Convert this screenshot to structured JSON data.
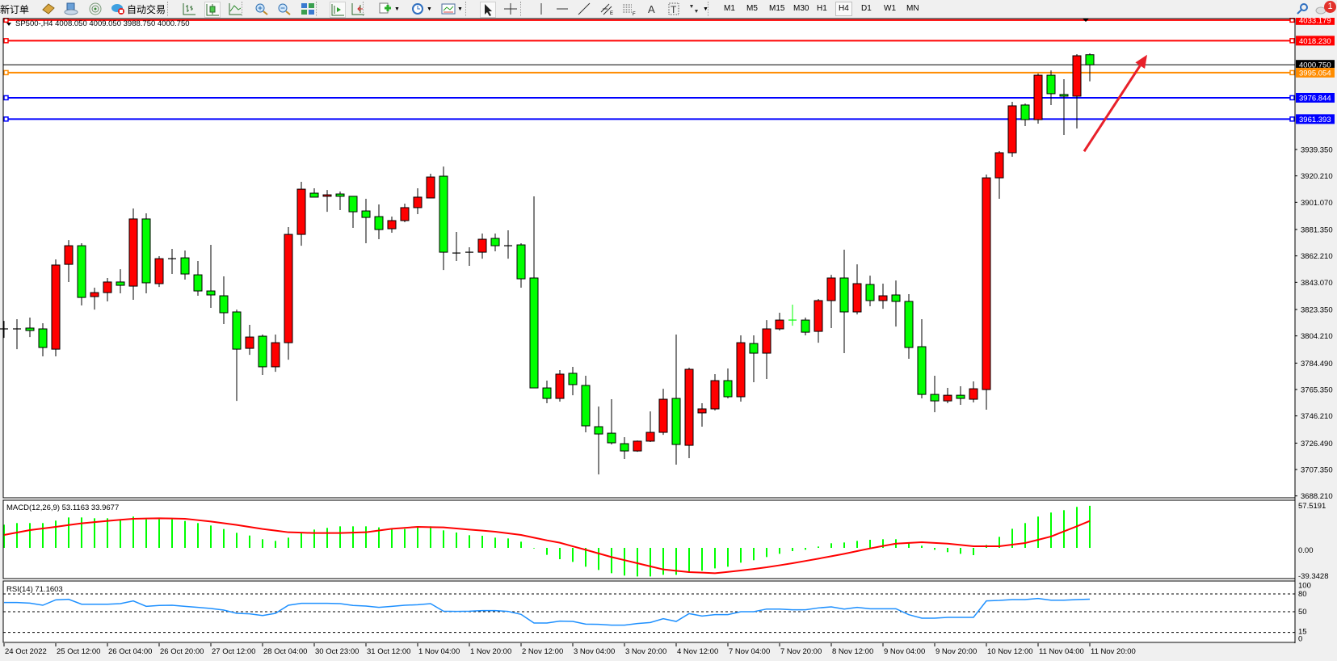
{
  "toolbar": {
    "new_order": "新订单",
    "auto_trading": "自动交易",
    "timeframes": [
      "M1",
      "M5",
      "M15",
      "M30",
      "H1",
      "H4",
      "D1",
      "W1",
      "MN"
    ],
    "active_timeframe": "H4",
    "notification_count": "1",
    "icons": [
      "market-watch-icon",
      "navigator-icon",
      "signals-icon",
      "auto-trading-icon",
      "bar-chart-icon",
      "candlestick-icon",
      "line-chart-icon",
      "zoom-in-icon",
      "zoom-out-icon",
      "tile-windows-icon",
      "auto-scroll-icon",
      "chart-shift-icon",
      "indicators-icon",
      "periods-icon",
      "templates-icon",
      "cursor-icon",
      "crosshair-icon",
      "vertical-line-icon",
      "horizontal-line-icon",
      "trendline-icon",
      "equidistant-channel-icon",
      "fibonacci-icon",
      "text-icon",
      "text-label-icon",
      "arrows-icon",
      "search-icon",
      "chat-icon"
    ]
  },
  "chart": {
    "title": "SP500-,H4  4008.050 4009.050 3988.750 4000.750",
    "macd_label": "MACD(12,26,9) 53.1163 33.9677",
    "rsi_label": "RSI(14) 71.1603"
  },
  "chart_data": {
    "type": "candlestick",
    "symbol": "SP500-",
    "timeframe": "H4",
    "bull_color": "#ff0000",
    "bear_color": "#00ff00",
    "ohlc_order": [
      "open",
      "high",
      "low",
      "close"
    ],
    "candles": [
      [
        3809.3,
        3815.1,
        3802.8,
        3809.3
      ],
      [
        3809.3,
        3816.3,
        3794.6,
        3809.3
      ],
      [
        3809.9,
        3817.5,
        3803.4,
        3808.1
      ],
      [
        3809.3,
        3813.4,
        3789.4,
        3795.8
      ],
      [
        3794.6,
        3859.7,
        3789.4,
        3855.6
      ],
      [
        3856.1,
        3873.7,
        3843.3,
        3869.6
      ],
      [
        3869.6,
        3871.4,
        3826.3,
        3832.1
      ],
      [
        3832.7,
        3839.2,
        3823.3,
        3835.6
      ],
      [
        3835.6,
        3846.2,
        3829.2,
        3843.3
      ],
      [
        3843.3,
        3852.6,
        3835.1,
        3840.9
      ],
      [
        3840.3,
        3896.6,
        3830.4,
        3889.0
      ],
      [
        3889.0,
        3893.1,
        3835.1,
        3842.7
      ],
      [
        3842.1,
        3862.0,
        3839.7,
        3860.2
      ],
      [
        3860.2,
        3867.3,
        3849.1,
        3860.2
      ],
      [
        3860.8,
        3866.1,
        3845.0,
        3849.1
      ],
      [
        3848.5,
        3858.5,
        3833.3,
        3836.8
      ],
      [
        3836.8,
        3870.2,
        3824.5,
        3833.9
      ],
      [
        3833.3,
        3847.4,
        3812.8,
        3821.0
      ],
      [
        3821.6,
        3823.3,
        3757.1,
        3794.6
      ],
      [
        3795.2,
        3812.2,
        3790.5,
        3803.4
      ],
      [
        3804.0,
        3805.2,
        3775.9,
        3781.8
      ],
      [
        3781.8,
        3805.2,
        3778.2,
        3799.3
      ],
      [
        3799.3,
        3883.1,
        3787.0,
        3877.8
      ],
      [
        3877.8,
        3915.9,
        3869.6,
        3910.6
      ],
      [
        3907.7,
        3911.2,
        3904.8,
        3904.8
      ],
      [
        3905.4,
        3910.0,
        3894.2,
        3906.5
      ],
      [
        3907.1,
        3908.9,
        3895.4,
        3905.4
      ],
      [
        3905.4,
        3905.4,
        3882.5,
        3894.2
      ],
      [
        3894.8,
        3903.6,
        3871.4,
        3890.1
      ],
      [
        3890.7,
        3899.5,
        3874.3,
        3881.3
      ],
      [
        3881.9,
        3890.7,
        3879.0,
        3887.8
      ],
      [
        3887.8,
        3900.1,
        3886.6,
        3897.2
      ],
      [
        3897.2,
        3911.2,
        3892.5,
        3904.8
      ],
      [
        3904.2,
        3921.8,
        3904.2,
        3919.4
      ],
      [
        3920.0,
        3927.0,
        3852.0,
        3864.9
      ],
      [
        3864.3,
        3879.6,
        3858.5,
        3864.3
      ],
      [
        3864.9,
        3868.5,
        3855.0,
        3864.9
      ],
      [
        3864.9,
        3878.4,
        3860.2,
        3874.3
      ],
      [
        3874.9,
        3878.4,
        3865.5,
        3869.6
      ],
      [
        3869.6,
        3880.8,
        3860.2,
        3869.6
      ],
      [
        3870.2,
        3871.4,
        3839.2,
        3845.6
      ],
      [
        3846.2,
        3905.4,
        3766.5,
        3766.5
      ],
      [
        3766.5,
        3771.8,
        3755.4,
        3758.9
      ],
      [
        3758.9,
        3779.4,
        3756.6,
        3776.5
      ],
      [
        3777.1,
        3781.8,
        3761.2,
        3768.9
      ],
      [
        3768.3,
        3775.3,
        3734.3,
        3739.0
      ],
      [
        3738.4,
        3753.0,
        3703.8,
        3733.1
      ],
      [
        3733.7,
        3758.3,
        3725.5,
        3726.7
      ],
      [
        3726.1,
        3730.8,
        3715.0,
        3720.8
      ],
      [
        3720.8,
        3728.4,
        3720.2,
        3727.9
      ],
      [
        3727.9,
        3749.5,
        3727.3,
        3734.3
      ],
      [
        3734.3,
        3765.9,
        3732.5,
        3758.3
      ],
      [
        3758.9,
        3805.2,
        3710.9,
        3725.5
      ],
      [
        3724.9,
        3781.2,
        3715.6,
        3780.0
      ],
      [
        3748.4,
        3755.4,
        3738.4,
        3751.3
      ],
      [
        3751.3,
        3776.5,
        3750.1,
        3771.8
      ],
      [
        3771.8,
        3780.6,
        3758.9,
        3760.1
      ],
      [
        3760.1,
        3804.6,
        3756.6,
        3799.3
      ],
      [
        3798.7,
        3804.6,
        3770.6,
        3791.7
      ],
      [
        3791.7,
        3815.7,
        3773.0,
        3809.3
      ],
      [
        3809.3,
        3821.0,
        3808.1,
        3815.7
      ],
      [
        3815.7,
        3826.9,
        3811.6,
        3815.7
      ],
      [
        3815.7,
        3817.5,
        3804.6,
        3806.9
      ],
      [
        3807.5,
        3831.0,
        3799.3,
        3829.8
      ],
      [
        3829.8,
        3848.5,
        3809.9,
        3846.2
      ],
      [
        3846.2,
        3866.7,
        3791.7,
        3821.6
      ],
      [
        3821.6,
        3856.1,
        3819.8,
        3842.1
      ],
      [
        3841.5,
        3847.9,
        3825.7,
        3829.8
      ],
      [
        3829.8,
        3842.1,
        3823.9,
        3833.3
      ],
      [
        3833.9,
        3844.4,
        3811.0,
        3829.2
      ],
      [
        3829.2,
        3834.5,
        3787.6,
        3795.8
      ],
      [
        3796.4,
        3816.3,
        3758.9,
        3761.8
      ],
      [
        3761.8,
        3775.3,
        3748.9,
        3757.1
      ],
      [
        3757.1,
        3766.5,
        3755.4,
        3761.2
      ],
      [
        3761.2,
        3767.7,
        3754.2,
        3758.9
      ],
      [
        3758.3,
        3771.2,
        3756.0,
        3765.9
      ],
      [
        3765.3,
        3921.2,
        3750.7,
        3918.8
      ],
      [
        3918.8,
        3938.2,
        3903.6,
        3937.0
      ],
      [
        3937.0,
        3973.9,
        3934.1,
        3971.0
      ],
      [
        3971.6,
        3972.7,
        3956.3,
        3961.0
      ],
      [
        3961.0,
        3994.4,
        3958.1,
        3993.2
      ],
      [
        3993.2,
        3996.7,
        3971.6,
        3979.8
      ],
      [
        3979.2,
        3990.3,
        3949.9,
        3978.0
      ],
      [
        3978.0,
        4008.5,
        3954.6,
        4007.3
      ],
      [
        4008.05,
        4009.05,
        3988.75,
        4000.75
      ]
    ],
    "price_axis_ticks": [
      "3939.350",
      "3920.210",
      "3901.070",
      "3881.350",
      "3862.210",
      "3843.070",
      "3823.350",
      "3804.210",
      "3784.490",
      "3765.350",
      "3746.210",
      "3726.490",
      "3707.350",
      "3688.210"
    ],
    "time_labels": [
      "24 Oct 2022",
      "25 Oct 12:00",
      "26 Oct 04:00",
      "26 Oct 20:00",
      "27 Oct 12:00",
      "28 Oct 04:00",
      "30 Oct 23:00",
      "31 Oct 12:00",
      "1 Nov 04:00",
      "1 Nov 20:00",
      "2 Nov 12:00",
      "3 Nov 04:00",
      "3 Nov 20:00",
      "4 Nov 12:00",
      "7 Nov 04:00",
      "7 Nov 20:00",
      "8 Nov 12:00",
      "9 Nov 04:00",
      "9 Nov 20:00",
      "10 Nov 12:00",
      "11 Nov 04:00",
      "11 Nov 20:00"
    ],
    "time_label_every_n_bars": 4,
    "current_price": {
      "value": 4000.75,
      "label": "4000.750",
      "color": "#000000"
    },
    "horizontal_lines": [
      {
        "value": 4033.179,
        "label": "4033.179",
        "color": "#ff0000"
      },
      {
        "value": 4018.23,
        "label": "4018.230",
        "color": "#ff0000"
      },
      {
        "value": 3995.054,
        "label": "3995.054",
        "color": "#ff8c00"
      },
      {
        "value": 3976.844,
        "label": "3976.844",
        "color": "#0000ff"
      },
      {
        "value": 3961.393,
        "label": "3961.393",
        "color": "#0000ff"
      }
    ],
    "annotation_arrow": {
      "color": "#e8202a",
      "from": {
        "bar": 84,
        "price": 3938.0
      },
      "to": {
        "bar": 89,
        "price": 4008.0
      }
    },
    "macd": {
      "params": "12,26,9",
      "ylim": [
        -39.3428,
        57.5191
      ],
      "axis_labels": [
        "57.5191",
        "0.00",
        "-39.3428"
      ],
      "hist_color": "#00ff00",
      "signal_color": "#ff0000",
      "main": [
        29.3,
        31.3,
        31.3,
        31.3,
        34.4,
        38.4,
        38.4,
        37.4,
        37.4,
        36.1,
        39.5,
        36.1,
        36.1,
        36.1,
        34.0,
        31.3,
        28.2,
        23.8,
        19.0,
        15.6,
        10.9,
        8.8,
        12.9,
        18.4,
        23.1,
        25.2,
        27.2,
        27.2,
        27.2,
        25.9,
        23.8,
        23.8,
        26.5,
        27.2,
        22.1,
        19.4,
        16.0,
        15.3,
        12.9,
        11.9,
        7.8,
        -0.7,
        -8.8,
        -14.3,
        -17.7,
        -23.8,
        -27.9,
        -32.0,
        -35.0,
        -36.1,
        -36.1,
        -34.0,
        -34.0,
        -30.6,
        -28.9,
        -25.9,
        -23.8,
        -18.7,
        -15.6,
        -11.6,
        -7.5,
        -4.1,
        -2.4,
        1.7,
        5.8,
        6.8,
        8.8,
        10.2,
        10.9,
        10.9,
        6.1,
        2.7,
        -2.4,
        -5.4,
        -7.5,
        -9.2,
        3.7,
        13.9,
        24.1,
        31.3,
        39.5,
        44.6,
        47.6,
        51.7,
        53.1163
      ],
      "signal": [
        16.3,
        19.4,
        22.4,
        24.5,
        26.5,
        28.8,
        31.0,
        32.5,
        34.0,
        35.4,
        36.7,
        37.1,
        37.4,
        37.1,
        36.7,
        35.0,
        33.3,
        31.1,
        28.9,
        26.4,
        23.8,
        21.8,
        19.7,
        19.2,
        18.7,
        18.7,
        18.7,
        19.2,
        19.7,
        21.9,
        24.1,
        25.3,
        26.5,
        26.2,
        25.9,
        24.5,
        23.1,
        21.8,
        20.4,
        18.4,
        16.3,
        12.9,
        9.5,
        6.5,
        2.0,
        -2.4,
        -7.0,
        -11.6,
        -15.5,
        -19.4,
        -23.3,
        -27.2,
        -28.9,
        -30.6,
        -31.3,
        -32.0,
        -30.3,
        -28.6,
        -26.6,
        -24.5,
        -22.0,
        -19.4,
        -16.5,
        -13.6,
        -10.6,
        -7.5,
        -4.1,
        -0.7,
        2.4,
        5.4,
        6.3,
        7.1,
        6.3,
        5.4,
        3.7,
        2.0,
        2.0,
        2.0,
        4.1,
        6.1,
        10.2,
        14.3,
        20.8,
        27.2,
        33.9677
      ]
    },
    "rsi": {
      "period": 14,
      "ylim": [
        0,
        100
      ],
      "levels": [
        80,
        50,
        15
      ],
      "axis_labels": [
        "100",
        "80",
        "50",
        "15",
        "0"
      ],
      "color": "#1e90ff",
      "values": [
        65.5,
        65.5,
        64.5,
        60.9,
        70.0,
        70.9,
        62.7,
        62.7,
        62.7,
        63.6,
        68.2,
        59.1,
        60.5,
        60.9,
        59.1,
        57.3,
        55.5,
        52.7,
        47.3,
        46.4,
        43.6,
        47.3,
        60.9,
        64.1,
        64.1,
        64.1,
        63.6,
        60.5,
        59.5,
        57.3,
        59.1,
        60.9,
        61.8,
        63.6,
        50.9,
        50.5,
        50.9,
        51.8,
        51.8,
        50.5,
        45.5,
        30.9,
        30.9,
        34.1,
        33.6,
        29.1,
        28.6,
        27.3,
        27.3,
        30.0,
        31.8,
        38.2,
        33.6,
        46.8,
        42.7,
        45.0,
        45.0,
        50.0,
        50.0,
        54.5,
        54.5,
        53.2,
        53.2,
        56.4,
        58.2,
        54.5,
        57.3,
        55.0,
        55.0,
        55.0,
        45.0,
        39.1,
        39.1,
        40.5,
        40.5,
        40.5,
        68.2,
        69.1,
        70.5,
        70.5,
        72.3,
        69.5,
        69.5,
        70.5,
        71.1603
      ]
    }
  }
}
